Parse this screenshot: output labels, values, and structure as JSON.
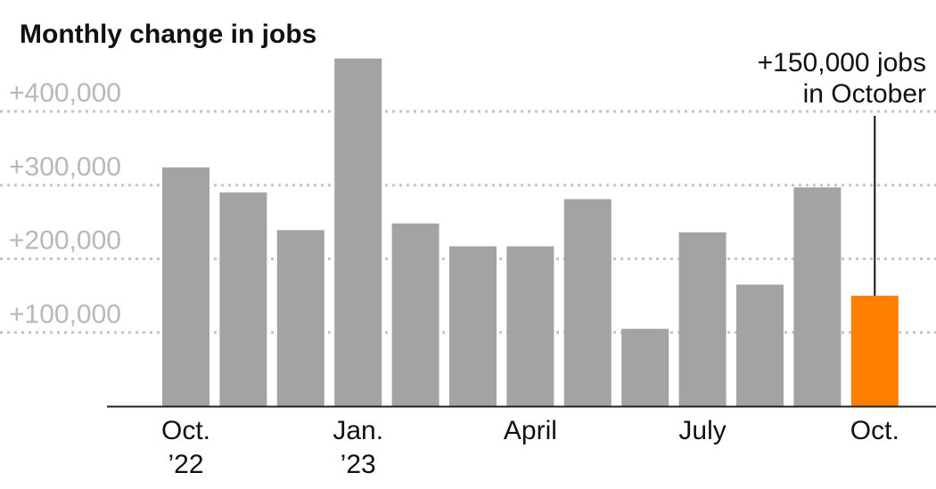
{
  "chart_data": {
    "type": "bar",
    "title": "Monthly change in jobs",
    "xlabel": "",
    "ylabel": "",
    "ylim": [
      0,
      480000
    ],
    "grid": true,
    "categories": [
      "Oct. 2022",
      "Nov. 2022",
      "Dec. 2022",
      "Jan. 2023",
      "Feb. 2023",
      "Mar. 2023",
      "Apr. 2023",
      "May 2023",
      "Jun. 2023",
      "Jul. 2023",
      "Aug. 2023",
      "Sep. 2023",
      "Oct. 2023"
    ],
    "values": [
      324000,
      290000,
      239000,
      472000,
      248000,
      217000,
      217000,
      281000,
      105000,
      236000,
      165000,
      297000,
      150000
    ],
    "highlight_index": 12,
    "bar_color": "#a3a3a3",
    "highlight_color": "#ff7f00",
    "y_ticks": [
      {
        "value": 100000,
        "label": "+100,000"
      },
      {
        "value": 200000,
        "label": "+200,000"
      },
      {
        "value": 300000,
        "label": "+300,000"
      },
      {
        "value": 400000,
        "label": "+400,000"
      }
    ],
    "x_ticks": [
      {
        "index": 0,
        "lines": [
          "Oct.",
          "’22"
        ]
      },
      {
        "index": 3,
        "lines": [
          "Jan.",
          "’23"
        ]
      },
      {
        "index": 6,
        "lines": [
          "April"
        ]
      },
      {
        "index": 9,
        "lines": [
          "July"
        ]
      },
      {
        "index": 12,
        "lines": [
          "Oct."
        ]
      }
    ],
    "annotation": {
      "index": 12,
      "lines": [
        "+150,000 jobs",
        "in October"
      ]
    }
  }
}
